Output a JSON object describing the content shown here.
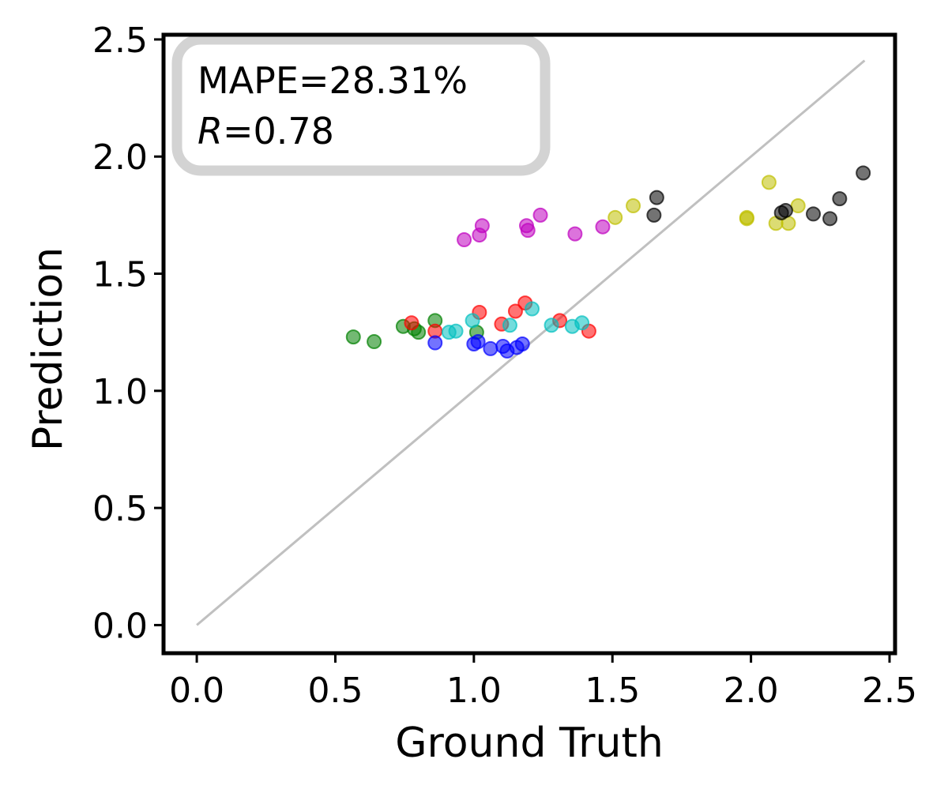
{
  "chart_data": {
    "type": "scatter",
    "title": "",
    "xlabel": "Ground Truth",
    "ylabel": "Prediction",
    "xlim": [
      -0.12,
      2.52
    ],
    "ylim": [
      -0.12,
      2.52
    ],
    "xticks": [
      0.0,
      0.5,
      1.0,
      1.5,
      2.0,
      2.5
    ],
    "yticks": [
      0.0,
      0.5,
      1.0,
      1.5,
      2.0,
      2.5
    ],
    "xtick_labels": [
      "0.0",
      "0.5",
      "1.0",
      "1.5",
      "2.0",
      "2.5"
    ],
    "ytick_labels": [
      "0.0",
      "0.5",
      "1.0",
      "1.5",
      "2.0",
      "2.5"
    ],
    "grid": false,
    "annotation": {
      "mape_text": "MAPE=28.31%",
      "r_symbol": "R",
      "r_value_text": "=0.78"
    },
    "reference_line": {
      "label": "y = x",
      "from": [
        0.0,
        0.0
      ],
      "to": [
        2.41,
        2.41
      ],
      "color": "#c0c0c0"
    },
    "point_opacity": 0.55,
    "series": [
      {
        "name": "green",
        "color": "#008000",
        "points": [
          [
            0.565,
            1.23
          ],
          [
            0.64,
            1.21
          ],
          [
            0.745,
            1.275
          ],
          [
            0.785,
            1.265
          ],
          [
            0.8,
            1.25
          ],
          [
            0.86,
            1.3
          ],
          [
            1.01,
            1.25
          ]
        ]
      },
      {
        "name": "red",
        "color": "#ff0000",
        "points": [
          [
            0.775,
            1.29
          ],
          [
            0.86,
            1.255
          ],
          [
            1.02,
            1.335
          ],
          [
            1.1,
            1.285
          ],
          [
            1.15,
            1.34
          ],
          [
            1.185,
            1.375
          ],
          [
            1.31,
            1.3
          ],
          [
            1.415,
            1.255
          ]
        ]
      },
      {
        "name": "cyan",
        "color": "#00bfbf",
        "points": [
          [
            0.91,
            1.25
          ],
          [
            0.935,
            1.255
          ],
          [
            0.995,
            1.3
          ],
          [
            1.13,
            1.28
          ],
          [
            1.21,
            1.35
          ],
          [
            1.28,
            1.28
          ],
          [
            1.355,
            1.275
          ],
          [
            1.39,
            1.29
          ]
        ]
      },
      {
        "name": "blue",
        "color": "#0000ff",
        "points": [
          [
            0.86,
            1.205
          ],
          [
            1.0,
            1.2
          ],
          [
            1.015,
            1.21
          ],
          [
            1.06,
            1.18
          ],
          [
            1.105,
            1.19
          ],
          [
            1.12,
            1.17
          ],
          [
            1.155,
            1.185
          ],
          [
            1.175,
            1.2
          ]
        ]
      },
      {
        "name": "magenta",
        "color": "#bf00bf",
        "points": [
          [
            0.965,
            1.645
          ],
          [
            1.02,
            1.665
          ],
          [
            1.03,
            1.705
          ],
          [
            1.19,
            1.705
          ],
          [
            1.195,
            1.685
          ],
          [
            1.24,
            1.75
          ],
          [
            1.365,
            1.67
          ],
          [
            1.465,
            1.7
          ]
        ]
      },
      {
        "name": "yellow",
        "color": "#bfbf00",
        "points": [
          [
            1.51,
            1.74
          ],
          [
            1.575,
            1.79
          ],
          [
            1.985,
            1.74
          ],
          [
            1.985,
            1.735
          ],
          [
            2.065,
            1.89
          ],
          [
            2.09,
            1.715
          ],
          [
            2.135,
            1.715
          ],
          [
            2.17,
            1.79
          ]
        ]
      },
      {
        "name": "black",
        "color": "#000000",
        "points": [
          [
            1.65,
            1.75
          ],
          [
            1.66,
            1.825
          ],
          [
            2.11,
            1.76
          ],
          [
            2.125,
            1.77
          ],
          [
            2.225,
            1.755
          ],
          [
            2.285,
            1.735
          ],
          [
            2.32,
            1.82
          ],
          [
            2.405,
            1.93
          ]
        ]
      }
    ]
  }
}
